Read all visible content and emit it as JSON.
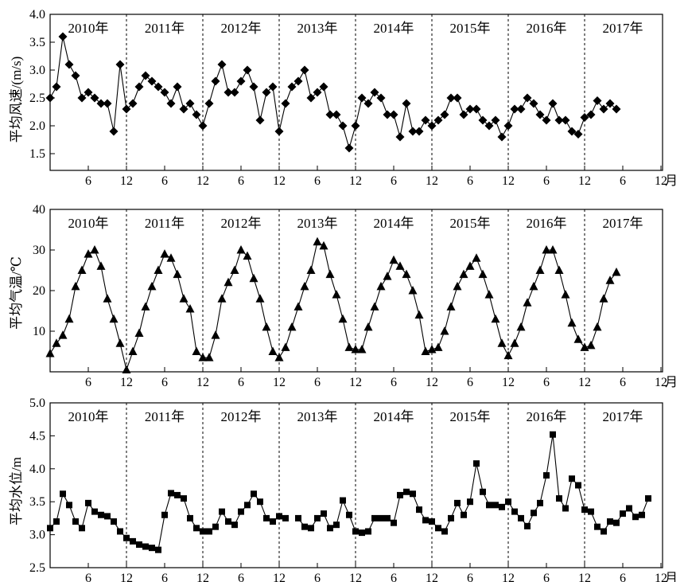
{
  "chart_data": [
    {
      "type": "line",
      "marker": "diamond",
      "ylabel": "平均风速/(m/s)",
      "ylim": [
        1.2,
        4.0
      ],
      "yticks": [
        "1.5",
        "2.0",
        "2.5",
        "3.0",
        "3.5",
        "4.0"
      ],
      "xlim": [
        0,
        92
      ],
      "xunit": "月",
      "x_ticks": [
        {
          "x": 6,
          "label": "6"
        },
        {
          "x": 12,
          "label": "12"
        },
        {
          "x": 18,
          "label": "6"
        },
        {
          "x": 24,
          "label": "12"
        },
        {
          "x": 30,
          "label": "6"
        },
        {
          "x": 36,
          "label": "12"
        },
        {
          "x": 42,
          "label": "6"
        },
        {
          "x": 48,
          "label": "12"
        },
        {
          "x": 54,
          "label": "6"
        },
        {
          "x": 60,
          "label": "12"
        },
        {
          "x": 66,
          "label": "6"
        },
        {
          "x": 72,
          "label": "12"
        },
        {
          "x": 78,
          "label": "6"
        },
        {
          "x": 84,
          "label": "12"
        },
        {
          "x": 90,
          "label": "6"
        },
        {
          "x": 96,
          "label": "12"
        }
      ],
      "year_labels": [
        "2010年",
        "2011年",
        "2012年",
        "2013年",
        "2014年",
        "2015年",
        "2016年",
        "2017年"
      ],
      "year_dividers": [
        12,
        24,
        36,
        48,
        60,
        72,
        84
      ],
      "segments": [
        {
          "x_start": 0,
          "values": [
            2.5,
            2.7,
            3.6,
            3.1,
            2.9,
            2.5,
            2.6,
            2.5,
            2.4,
            2.4,
            1.9,
            3.1,
            2.3,
            2.4,
            2.7,
            2.9,
            2.8,
            2.7,
            2.6,
            2.4,
            2.7,
            2.3,
            2.4,
            2.2,
            2.0,
            2.4,
            2.8,
            3.1,
            2.6,
            2.6,
            2.8,
            3.0,
            2.7,
            2.1,
            2.6,
            2.7,
            1.9,
            2.4,
            2.7,
            2.8,
            3.0,
            2.5,
            2.6,
            2.7,
            2.2,
            2.2,
            2.0,
            1.6,
            2.0,
            2.5,
            2.4,
            2.6,
            2.5,
            2.2,
            2.2,
            1.8,
            2.4,
            1.9,
            1.9,
            2.1,
            2.0,
            2.1,
            2.2,
            2.5,
            2.5,
            2.2,
            2.3,
            2.3,
            2.1,
            2.0,
            2.1,
            1.8,
            2.0,
            2.3,
            2.3,
            2.5,
            2.4,
            2.2,
            2.1,
            2.4,
            2.1,
            2.1,
            1.9,
            1.85,
            2.15,
            2.2,
            2.45,
            2.3,
            2.4,
            2.3
          ]
        }
      ]
    },
    {
      "type": "line",
      "marker": "triangle",
      "ylabel": "平均气温/℃",
      "ylim": [
        0,
        40
      ],
      "yticks": [
        "10",
        "20",
        "30",
        "40"
      ],
      "xlim": [
        0,
        92
      ],
      "xunit": "月",
      "x_ticks": [
        {
          "x": 6,
          "label": "6"
        },
        {
          "x": 12,
          "label": "12"
        },
        {
          "x": 18,
          "label": "6"
        },
        {
          "x": 24,
          "label": "12"
        },
        {
          "x": 30,
          "label": "6"
        },
        {
          "x": 36,
          "label": "12"
        },
        {
          "x": 42,
          "label": "6"
        },
        {
          "x": 48,
          "label": "12"
        },
        {
          "x": 54,
          "label": "6"
        },
        {
          "x": 60,
          "label": "12"
        },
        {
          "x": 66,
          "label": "6"
        },
        {
          "x": 72,
          "label": "12"
        },
        {
          "x": 78,
          "label": "6"
        },
        {
          "x": 84,
          "label": "12"
        },
        {
          "x": 90,
          "label": "6"
        },
        {
          "x": 96,
          "label": "12"
        }
      ],
      "year_labels": [
        "2010年",
        "2011年",
        "2012年",
        "2013年",
        "2014年",
        "2015年",
        "2016年",
        "2017年"
      ],
      "year_dividers": [
        12,
        24,
        36,
        48,
        60,
        72,
        84
      ],
      "segments": [
        {
          "x_start": 0,
          "values": [
            4.5,
            7,
            9,
            13,
            21,
            25,
            29,
            30,
            26,
            18,
            13,
            7,
            0.5,
            5,
            9.5,
            16,
            21,
            25,
            29,
            28,
            24,
            18,
            15.5,
            5,
            3.5,
            3.5,
            9,
            18,
            22,
            25,
            30,
            28.5,
            23,
            18,
            11,
            5,
            3.5,
            6,
            11,
            16,
            21,
            25,
            32,
            31,
            24,
            19,
            13,
            6,
            5.5,
            5.5,
            11,
            16,
            21,
            23.5,
            27.5,
            26,
            24,
            20,
            14,
            5,
            5.5,
            6,
            10,
            16,
            21,
            24,
            26,
            28,
            24,
            19,
            13,
            7,
            4,
            7,
            11,
            17,
            21,
            25,
            30,
            30,
            25,
            19,
            12,
            8,
            6,
            6.5,
            11,
            18,
            22.5,
            24.5
          ]
        }
      ]
    },
    {
      "type": "line",
      "marker": "square",
      "ylabel": "平均水位/m",
      "ylim": [
        2.5,
        5.0
      ],
      "yticks": [
        "2.5",
        "3.0",
        "3.5",
        "4.0",
        "4.5",
        "5.0"
      ],
      "xlim": [
        0,
        96
      ],
      "xunit": "月",
      "x_ticks": [
        {
          "x": 6,
          "label": "6"
        },
        {
          "x": 12,
          "label": "12"
        },
        {
          "x": 18,
          "label": "6"
        },
        {
          "x": 24,
          "label": "12"
        },
        {
          "x": 30,
          "label": "6"
        },
        {
          "x": 36,
          "label": "12"
        },
        {
          "x": 42,
          "label": "6"
        },
        {
          "x": 48,
          "label": "12"
        },
        {
          "x": 54,
          "label": "6"
        },
        {
          "x": 60,
          "label": "12"
        },
        {
          "x": 66,
          "label": "6"
        },
        {
          "x": 72,
          "label": "12"
        },
        {
          "x": 78,
          "label": "6"
        },
        {
          "x": 84,
          "label": "12"
        },
        {
          "x": 90,
          "label": "6"
        },
        {
          "x": 96,
          "label": "12"
        }
      ],
      "year_labels": [
        "2010年",
        "2011年",
        "2012年",
        "2013年",
        "2014年",
        "2015年",
        "2016年",
        "2017年"
      ],
      "year_dividers": [
        12,
        24,
        36,
        48,
        60,
        72,
        84
      ],
      "segments": [
        {
          "x_start": 0,
          "values": [
            3.1,
            3.2,
            3.62,
            3.45,
            3.2,
            3.1,
            3.48,
            3.35,
            3.3,
            3.28,
            3.2,
            3.05,
            2.95,
            2.9,
            2.85,
            2.82,
            2.8,
            2.77,
            3.3,
            3.63,
            3.6,
            3.55,
            3.25,
            3.1,
            3.05,
            3.05,
            3.12,
            3.35,
            3.2,
            3.15,
            3.35,
            3.45,
            3.62,
            3.5,
            3.25,
            3.2,
            3.28,
            3.25
          ]
        },
        {
          "x_start": 39,
          "values": [
            3.25,
            3.12,
            3.1,
            3.25,
            3.32,
            3.1,
            3.15,
            3.52,
            3.3,
            3.05,
            3.03,
            3.05,
            3.25,
            3.25,
            3.25,
            3.18,
            3.6,
            3.65,
            3.62,
            3.38,
            3.22,
            3.2,
            3.1,
            3.05,
            3.25,
            3.48,
            3.3,
            3.5,
            4.08,
            3.65,
            3.45,
            3.45,
            3.42,
            3.5,
            3.35,
            3.25,
            3.13,
            3.33,
            3.48,
            3.9,
            4.52,
            3.55,
            3.4,
            3.85,
            3.75,
            3.38,
            3.35,
            3.12,
            3.05,
            3.2,
            3.18,
            3.32,
            3.4,
            3.27,
            3.3,
            3.55
          ]
        }
      ]
    }
  ]
}
